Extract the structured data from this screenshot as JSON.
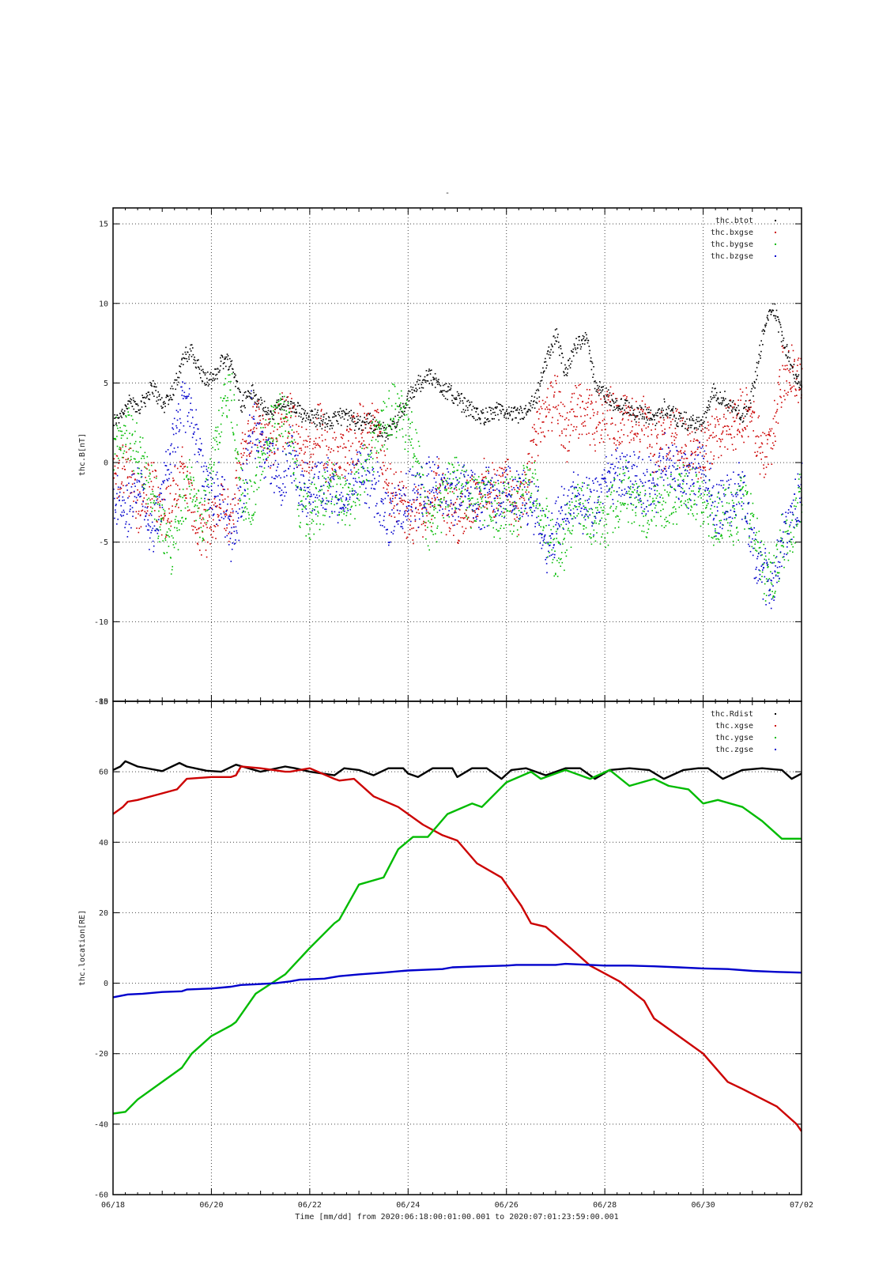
{
  "figure": {
    "top_title": "-",
    "footer": "Time [mm/dd]  from 2020:06:18:00:01:00.001  to  2020:07:01:23:59:00.001",
    "x_ticks": [
      "06/18",
      "06/20",
      "06/22",
      "06/24",
      "06/26",
      "06/28",
      "06/30",
      "07/02"
    ]
  },
  "chart_data": [
    {
      "type": "scatter",
      "ylabel": "thc.B[nT]",
      "xlim": [
        0,
        14
      ],
      "ylim": [
        -15,
        16
      ],
      "y_ticks": [
        -15,
        -10,
        -5,
        0,
        5,
        10,
        15
      ],
      "grid": true,
      "legend_position": "top-right",
      "legend": [
        "thc.btot",
        "thc.bxgse",
        "thc.bygse",
        "thc.bzgse"
      ],
      "colors": [
        "#000000",
        "#cc0000",
        "#00bb00",
        "#0000cc"
      ],
      "series": [
        {
          "name": "thc.btot",
          "color": "#000000",
          "x": [
            0,
            0.3,
            0.5,
            0.8,
            1.0,
            1.2,
            1.4,
            1.6,
            1.8,
            2.0,
            2.2,
            2.4,
            2.6,
            2.8,
            3.0,
            3.2,
            3.4,
            3.6,
            3.8,
            4.0,
            4.2,
            4.4,
            4.6,
            4.8,
            5.0,
            5.2,
            5.4,
            5.6,
            5.8,
            6.0,
            6.2,
            6.4,
            6.6,
            6.8,
            7.0,
            7.2,
            7.4,
            7.6,
            7.8,
            8.0,
            8.2,
            8.4,
            8.6,
            8.8,
            9.0,
            9.2,
            9.4,
            9.6,
            9.8,
            10.0,
            10.2,
            10.4,
            10.6,
            10.8,
            11.0,
            11.2,
            11.4,
            11.6,
            11.8,
            12.0,
            12.2,
            12.4,
            12.6,
            12.8,
            13.0,
            13.2,
            13.4,
            13.6,
            13.8,
            14.0
          ],
          "y": [
            2.5,
            3.8,
            3.5,
            4.8,
            3.6,
            4.5,
            6.5,
            7.0,
            5.5,
            5.0,
            6.5,
            6.3,
            3.8,
            4.5,
            3.5,
            3.0,
            3.8,
            3.5,
            3.2,
            3.0,
            2.8,
            2.5,
            3.0,
            2.8,
            2.5,
            2.8,
            2.0,
            2.0,
            3.0,
            4.0,
            5.0,
            5.5,
            5.0,
            4.5,
            4.0,
            3.5,
            3.0,
            3.0,
            3.2,
            3.2,
            3.0,
            3.2,
            4.0,
            6.5,
            8.0,
            5.5,
            7.5,
            8.0,
            5.0,
            4.2,
            3.8,
            3.5,
            3.2,
            3.0,
            2.8,
            3.5,
            3.0,
            2.6,
            2.5,
            2.5,
            4.5,
            4.0,
            3.5,
            3.0,
            4.5,
            8.0,
            10.0,
            8.0,
            6.0,
            4.5
          ]
        },
        {
          "name": "thc.bxgse",
          "color": "#cc0000",
          "x": [
            0,
            0.3,
            0.5,
            0.8,
            1.0,
            1.2,
            1.4,
            1.6,
            1.8,
            2.0,
            2.2,
            2.4,
            2.6,
            2.8,
            3.0,
            3.2,
            3.4,
            3.6,
            3.8,
            4.0,
            4.2,
            4.4,
            4.6,
            4.8,
            5.0,
            5.2,
            5.4,
            5.6,
            5.8,
            6.0,
            6.2,
            6.4,
            6.6,
            6.8,
            7.0,
            7.2,
            7.4,
            7.6,
            7.8,
            8.0,
            8.2,
            8.4,
            8.6,
            8.8,
            9.0,
            9.2,
            9.4,
            9.6,
            9.8,
            10.0,
            10.2,
            10.4,
            10.6,
            10.8,
            11.0,
            11.2,
            11.4,
            11.6,
            11.8,
            12.0,
            12.2,
            12.4,
            12.6,
            12.8,
            13.0,
            13.2,
            13.4,
            13.6,
            13.8,
            14.0
          ],
          "y": [
            -1.0,
            0.0,
            -3.0,
            -1.0,
            -3.5,
            -2.0,
            -0.5,
            -3.0,
            -4.5,
            -3.5,
            -2.5,
            -3.5,
            0.5,
            2.0,
            2.5,
            1.0,
            2.5,
            3.0,
            0.5,
            1.0,
            2.0,
            -0.5,
            0.5,
            1.0,
            2.0,
            3.0,
            1.5,
            -2.0,
            -1.5,
            -4.0,
            -3.0,
            -2.5,
            -1.0,
            -3.0,
            -3.5,
            -2.5,
            -2.0,
            -1.5,
            -2.0,
            -1.0,
            -3.0,
            -1.5,
            2.0,
            3.0,
            4.0,
            1.5,
            3.5,
            3.0,
            2.5,
            3.5,
            2.5,
            3.0,
            2.0,
            3.0,
            0.5,
            1.5,
            2.0,
            1.0,
            1.0,
            0.5,
            1.5,
            2.0,
            2.5,
            3.0,
            2.5,
            0.5,
            1.5,
            6.0,
            5.5,
            5.0
          ]
        },
        {
          "name": "thc.bygse",
          "color": "#00bb00",
          "x": [
            0,
            0.3,
            0.5,
            0.8,
            1.0,
            1.2,
            1.4,
            1.6,
            1.8,
            2.0,
            2.2,
            2.4,
            2.6,
            2.8,
            3.0,
            3.2,
            3.4,
            3.6,
            3.8,
            4.0,
            4.2,
            4.4,
            4.6,
            4.8,
            5.0,
            5.2,
            5.4,
            5.6,
            5.8,
            6.0,
            6.2,
            6.4,
            6.6,
            6.8,
            7.0,
            7.2,
            7.4,
            7.6,
            7.8,
            8.0,
            8.2,
            8.4,
            8.6,
            8.8,
            9.0,
            9.2,
            9.4,
            9.6,
            9.8,
            10.0,
            10.2,
            10.4,
            10.6,
            10.8,
            11.0,
            11.2,
            11.4,
            11.6,
            11.8,
            12.0,
            12.2,
            12.4,
            12.6,
            12.8,
            13.0,
            13.2,
            13.4,
            13.6,
            13.8,
            14.0
          ],
          "y": [
            1.0,
            2.0,
            0.5,
            -2.0,
            -4.0,
            -5.5,
            -3.0,
            -1.0,
            -4.0,
            0.5,
            3.0,
            4.5,
            -2.0,
            -3.0,
            0.5,
            2.0,
            3.0,
            2.0,
            -3.0,
            -3.0,
            -2.5,
            -1.5,
            -2.0,
            -2.5,
            -1.0,
            0.5,
            2.0,
            3.0,
            3.5,
            2.5,
            0.0,
            -4.0,
            -3.0,
            -1.5,
            -1.0,
            -2.0,
            -2.5,
            -2.0,
            -3.0,
            -2.5,
            -3.0,
            -1.5,
            -2.0,
            -4.0,
            -6.0,
            -4.5,
            -2.5,
            -3.0,
            -4.0,
            -3.5,
            -2.5,
            -1.5,
            -2.5,
            -3.0,
            -2.0,
            -2.5,
            -2.0,
            -1.5,
            -2.0,
            -2.0,
            -3.5,
            -3.0,
            -3.5,
            -2.5,
            -4.0,
            -6.5,
            -7.5,
            -5.0,
            -4.0,
            -2.0
          ]
        },
        {
          "name": "thc.bzgse",
          "color": "#0000cc",
          "x": [
            0,
            0.3,
            0.5,
            0.8,
            1.0,
            1.2,
            1.4,
            1.6,
            1.8,
            2.0,
            2.2,
            2.4,
            2.6,
            2.8,
            3.0,
            3.2,
            3.4,
            3.6,
            3.8,
            4.0,
            4.2,
            4.4,
            4.6,
            4.8,
            5.0,
            5.2,
            5.4,
            5.6,
            5.8,
            6.0,
            6.2,
            6.4,
            6.6,
            6.8,
            7.0,
            7.2,
            7.4,
            7.6,
            7.8,
            8.0,
            8.2,
            8.4,
            8.6,
            8.8,
            9.0,
            9.2,
            9.4,
            9.6,
            9.8,
            10.0,
            10.2,
            10.4,
            10.6,
            10.8,
            11.0,
            11.2,
            11.4,
            11.6,
            11.8,
            12.0,
            12.2,
            12.4,
            12.6,
            12.8,
            13.0,
            13.2,
            13.4,
            13.6,
            13.8,
            14.0
          ],
          "y": [
            -2.0,
            -3.0,
            -1.0,
            -4.5,
            -2.0,
            1.0,
            4.0,
            3.0,
            0.0,
            -2.0,
            -2.0,
            -4.5,
            -2.5,
            2.5,
            1.0,
            0.0,
            -1.0,
            0.5,
            -1.5,
            -2.0,
            -1.0,
            -1.5,
            -2.0,
            -1.5,
            -0.5,
            -1.0,
            -2.0,
            -3.5,
            -3.0,
            -2.0,
            -2.5,
            -1.0,
            -1.5,
            -2.0,
            -2.0,
            -1.0,
            -2.5,
            -2.0,
            -2.0,
            -1.5,
            -2.0,
            -2.5,
            -3.0,
            -5.0,
            -4.0,
            -3.0,
            -2.0,
            -3.0,
            -2.5,
            -1.5,
            -0.5,
            -1.0,
            -1.0,
            -1.5,
            -1.5,
            0.0,
            -0.5,
            -1.0,
            -1.0,
            0.0,
            -3.0,
            -2.5,
            -2.0,
            -1.5,
            -5.5,
            -7.0,
            -8.0,
            -5.0,
            -3.5,
            -1.5
          ]
        }
      ]
    },
    {
      "type": "line",
      "ylabel": "thc.location[RE]",
      "xlim": [
        0,
        14
      ],
      "ylim": [
        -60,
        80
      ],
      "y_ticks": [
        -60,
        -40,
        -20,
        0,
        20,
        40,
        60,
        80
      ],
      "grid": true,
      "legend_position": "top-right",
      "legend": [
        "thc.Rdist",
        "thc.xgse",
        "thc.ygse",
        "thc.zgse"
      ],
      "colors": [
        "#000000",
        "#cc0000",
        "#00bb00",
        "#0000cc"
      ],
      "series": [
        {
          "name": "thc.Rdist",
          "color": "#000000",
          "x": [
            0,
            0.15,
            0.25,
            0.5,
            1.0,
            1.35,
            1.5,
            1.9,
            2.2,
            2.5,
            3.0,
            3.5,
            3.7,
            4.0,
            4.5,
            4.7,
            5.0,
            5.3,
            5.6,
            5.9,
            6.0,
            6.2,
            6.5,
            6.9,
            7.0,
            7.3,
            7.6,
            7.9,
            8.1,
            8.4,
            8.8,
            9.2,
            9.5,
            9.8,
            10.1,
            10.5,
            10.9,
            11.2,
            11.6,
            11.9,
            12.1,
            12.4,
            12.8,
            13.2,
            13.6,
            13.8,
            14.0
          ],
          "y": [
            60.5,
            61.5,
            63.0,
            61.5,
            60.2,
            62.5,
            61.5,
            60.3,
            60.0,
            62.0,
            60.0,
            61.5,
            61.0,
            60.0,
            59.0,
            61.0,
            60.5,
            59.0,
            61.0,
            61.0,
            59.5,
            58.5,
            61.0,
            61.0,
            58.5,
            61.0,
            61.0,
            58.0,
            60.5,
            61.0,
            59.0,
            61.0,
            61.0,
            58.0,
            60.5,
            61.0,
            60.5,
            58.0,
            60.5,
            61.0,
            61.0,
            58.0,
            60.5,
            61.0,
            60.5,
            58.0,
            59.5
          ]
        },
        {
          "name": "thc.xgse",
          "color": "#cc0000",
          "x": [
            0,
            0.2,
            0.3,
            0.5,
            0.9,
            1.3,
            1.4,
            1.5,
            2.0,
            2.4,
            2.5,
            2.6,
            3.0,
            3.5,
            3.6,
            4.0,
            4.5,
            4.6,
            4.9,
            5.3,
            5.8,
            6.3,
            6.7,
            7.0,
            7.4,
            7.9,
            8.3,
            8.5,
            8.8,
            9.3,
            9.7,
            10.3,
            10.8,
            11.0,
            11.5,
            12.0,
            12.5,
            12.8,
            13.5,
            13.9,
            14.0
          ],
          "y": [
            48.0,
            50.0,
            51.5,
            52.0,
            53.5,
            55.0,
            56.5,
            58.0,
            58.5,
            58.5,
            59.0,
            61.5,
            61.0,
            60.0,
            60.0,
            61.0,
            58.0,
            57.5,
            58.0,
            53.0,
            50.0,
            45.0,
            42.0,
            40.5,
            34.0,
            30.0,
            22.0,
            17.0,
            16.0,
            10.0,
            5.0,
            0.5,
            -5.0,
            -10.0,
            -15.0,
            -20.0,
            -28.0,
            -30.0,
            -35.0,
            -40.0,
            -42.0
          ]
        },
        {
          "name": "thc.ygse",
          "color": "#00bb00",
          "x": [
            0,
            0.25,
            0.5,
            1.0,
            1.3,
            1.4,
            1.6,
            2.0,
            2.4,
            2.5,
            2.9,
            3.5,
            3.6,
            4.0,
            4.5,
            4.6,
            5.0,
            5.5,
            5.8,
            6.1,
            6.4,
            6.8,
            7.3,
            7.5,
            8.0,
            8.5,
            8.7,
            9.2,
            9.7,
            10.1,
            10.5,
            11.0,
            11.3,
            11.7,
            12.0,
            12.3,
            12.8,
            13.2,
            13.6,
            14.0
          ],
          "y": [
            -37.0,
            -36.5,
            -33.0,
            -28.0,
            -25.0,
            -24.0,
            -20.0,
            -15.0,
            -12.0,
            -11.0,
            -3.0,
            2.5,
            4.0,
            10.0,
            17.0,
            18.0,
            28.0,
            30.0,
            38.0,
            41.5,
            41.5,
            48.0,
            51.0,
            50.0,
            57.0,
            60.0,
            58.0,
            60.5,
            58.0,
            60.5,
            56.0,
            58.0,
            56.0,
            55.0,
            51.0,
            52.0,
            50.0,
            46.0,
            41.0,
            41.0
          ]
        },
        {
          "name": "thc.zgse",
          "color": "#0000cc",
          "x": [
            0,
            0.3,
            0.6,
            1.0,
            1.4,
            1.5,
            2.0,
            2.4,
            2.6,
            2.9,
            3.3,
            3.6,
            3.8,
            4.3,
            4.6,
            5.0,
            5.5,
            5.9,
            6.0,
            6.7,
            6.9,
            7.5,
            8.0,
            8.2,
            9.0,
            9.2,
            10.0,
            10.5,
            11.0,
            11.5,
            12.0,
            12.5,
            13.0,
            13.5,
            14.0
          ],
          "y": [
            -4.0,
            -3.2,
            -3.0,
            -2.5,
            -2.3,
            -1.8,
            -1.5,
            -1.0,
            -0.5,
            -0.3,
            0.0,
            0.5,
            1.0,
            1.3,
            2.0,
            2.5,
            3.0,
            3.5,
            3.6,
            4.0,
            4.5,
            4.8,
            5.0,
            5.2,
            5.2,
            5.5,
            5.0,
            5.0,
            4.8,
            4.5,
            4.2,
            4.0,
            3.5,
            3.2,
            3.0
          ]
        }
      ]
    }
  ]
}
